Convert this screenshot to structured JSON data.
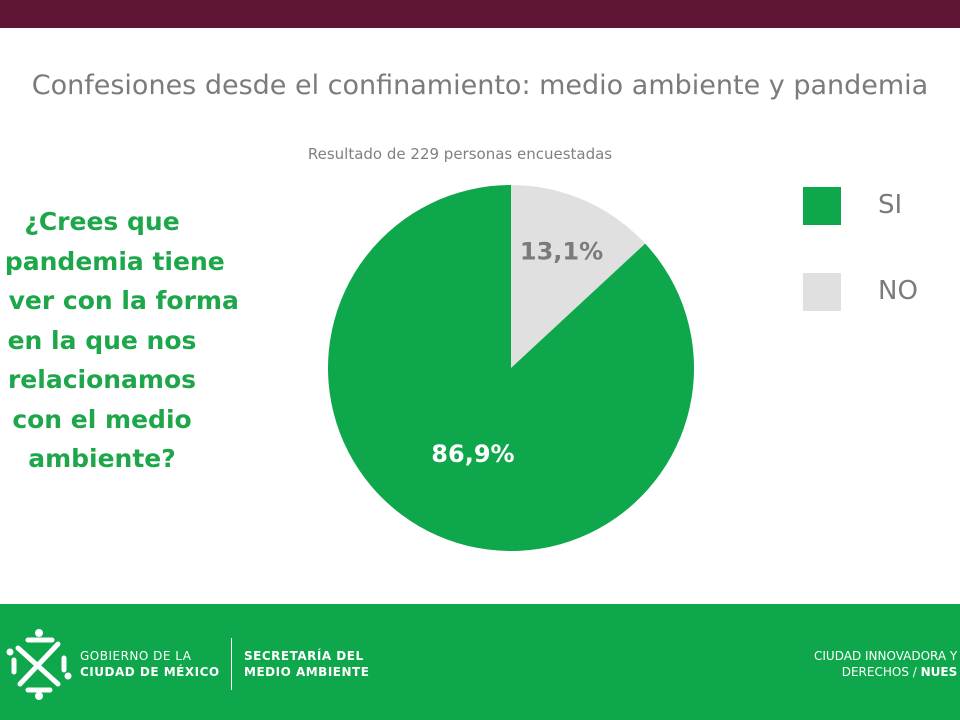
{
  "header": {
    "title": "Confesiones desde el confinamiento: medio ambiente y pandemia"
  },
  "question_lines": [
    "¿Crees que",
    "a pandemia tiene",
    "ue ver con la forma",
    "en la que nos",
    "relacionamos",
    "con el medio",
    "ambiente?"
  ],
  "chart_data": {
    "type": "pie",
    "subtitle": "Resultado de 229 personas encuestadas",
    "slices": [
      {
        "label": "NO",
        "value": 13.1,
        "value_label": "13,1%",
        "color": "#e0e0e0"
      },
      {
        "label": "SI",
        "value": 86.9,
        "value_label": "86,9%",
        "color": "#0ea74b"
      }
    ],
    "legend": [
      {
        "label": "SI",
        "color": "#0ea74b"
      },
      {
        "label": "NO",
        "color": "#e0e0e0"
      }
    ],
    "start_angle": "12 o'clock",
    "legend_position": "right"
  },
  "footer": {
    "gov_line1": "GOBIERNO DE LA",
    "gov_line2": "CIUDAD DE MÉXICO",
    "sec_line1": "SECRETARÍA DEL",
    "sec_line2": "MEDIO AMBIENTE",
    "slogan_line1": "CIUDAD INNOVADORA Y",
    "slogan_line2a": "DERECHOS / ",
    "slogan_line2b": "NUES"
  },
  "colors": {
    "top_bar": "#5e1634",
    "green": "#0ea74b",
    "question_green": "#1ea64a",
    "gray_text": "#7b7b7b"
  }
}
